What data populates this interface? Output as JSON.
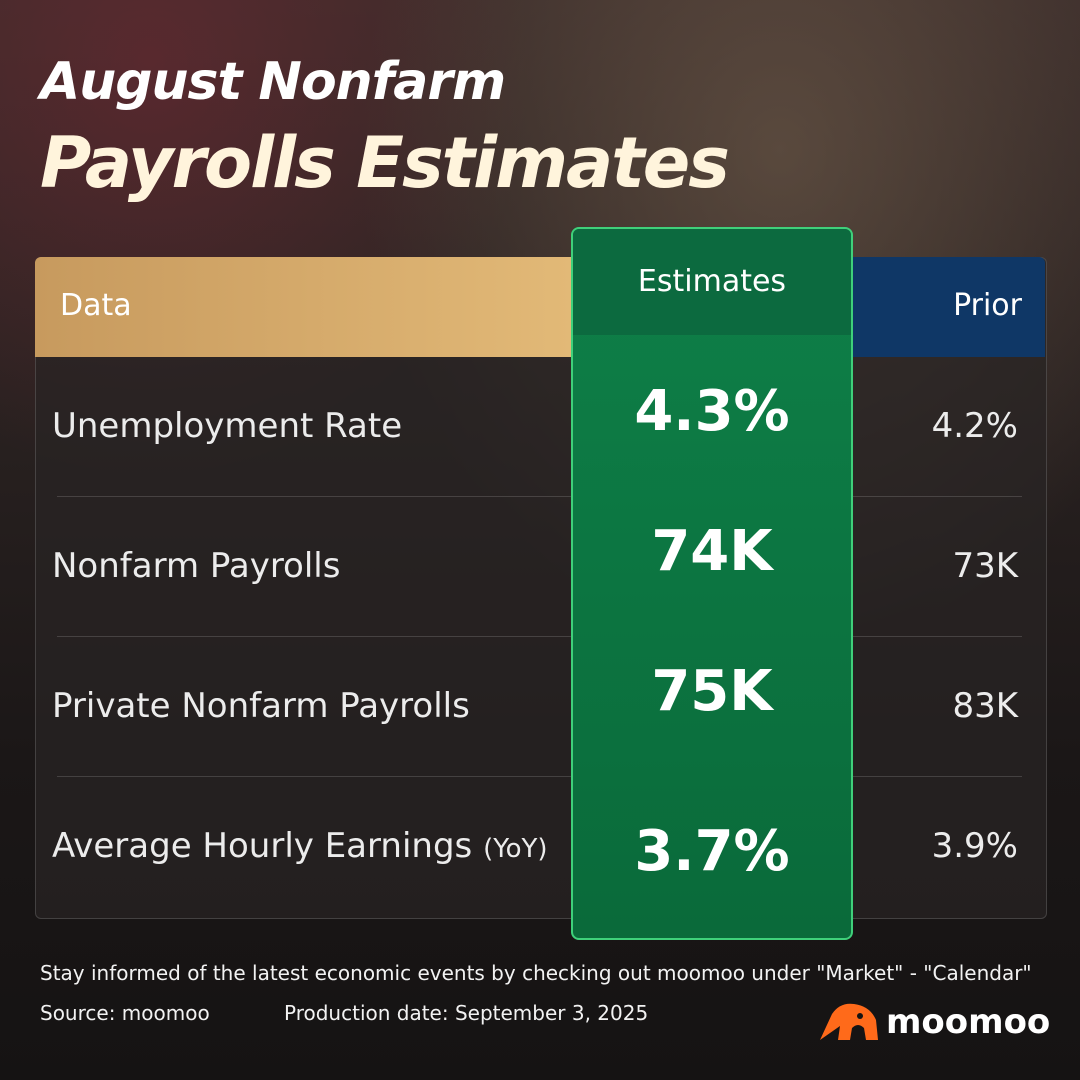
{
  "title": {
    "line1": "August Nonfarm",
    "line2": "Payrolls Estimates"
  },
  "table": {
    "headers": [
      "Data",
      "Estimates",
      "Prior"
    ],
    "rows": [
      {
        "label": "Unemployment Rate",
        "estimate": "4.3%",
        "prior": "4.2%"
      },
      {
        "label": "Nonfarm Payrolls",
        "estimate": "74K",
        "prior": "73K"
      },
      {
        "label": "Private Nonfarm Payrolls",
        "estimate": "75K",
        "prior": "83K"
      },
      {
        "label": "Average Hourly Earnings",
        "qualifier": "(YoY)",
        "estimate": "3.7%",
        "prior": "3.9%"
      }
    ]
  },
  "footer": {
    "note": "Stay informed of the latest economic events by checking out moomoo under \"Market\" - \"Calendar\"",
    "source": "Source: moomoo",
    "production_date": "Production date: September 3, 2025"
  },
  "brand": "moomoo"
}
